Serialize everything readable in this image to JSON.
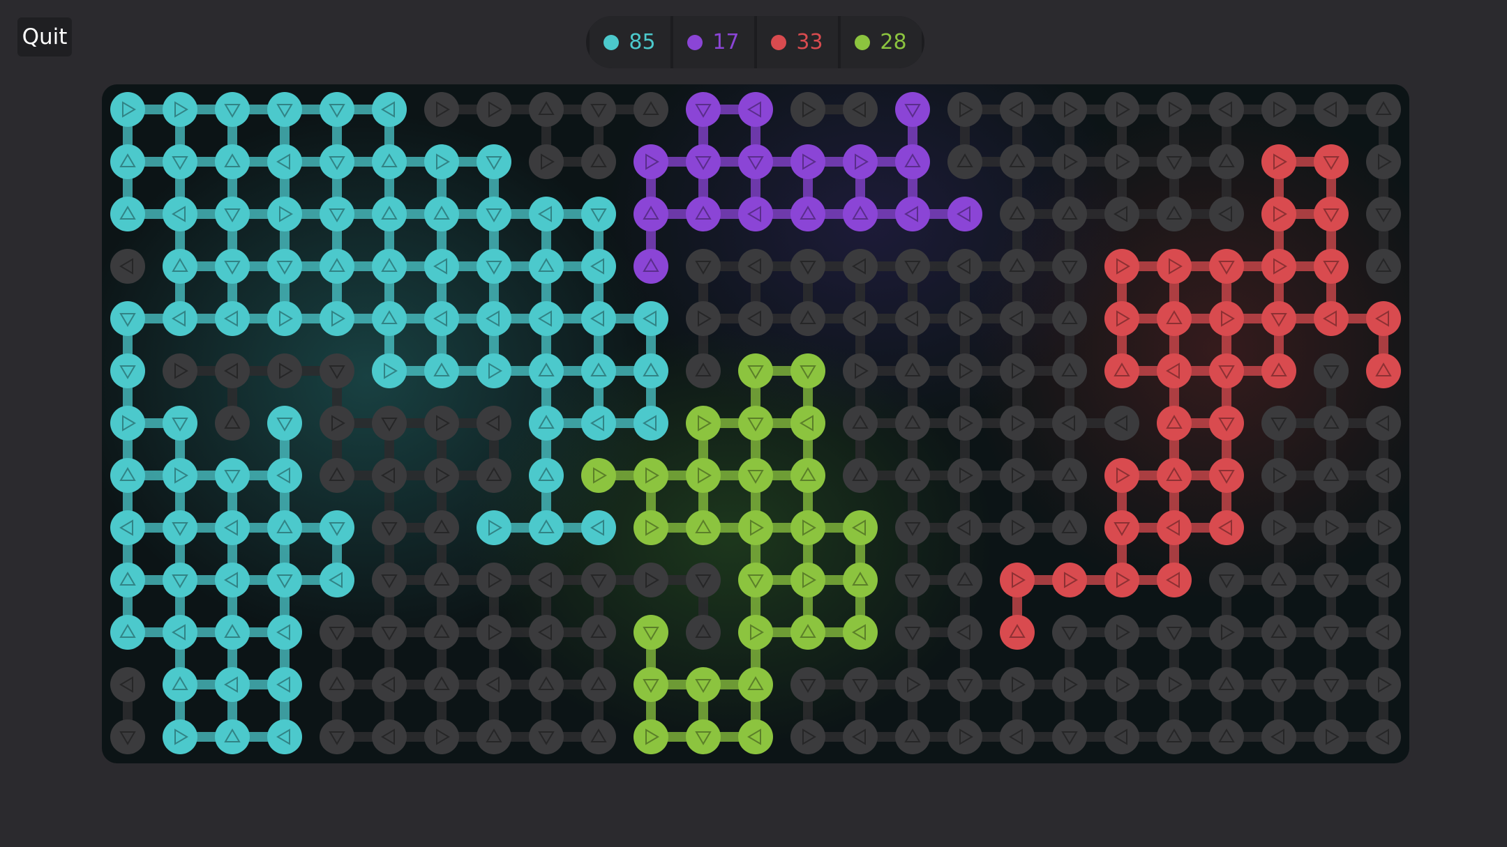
{
  "quit_label": "Quit",
  "scores": [
    {
      "team": "cyan",
      "color": "#4cc9cc",
      "value": "85"
    },
    {
      "team": "purple",
      "color": "#8b45d6",
      "value": "17"
    },
    {
      "team": "red",
      "color": "#d94b4f",
      "value": "33"
    },
    {
      "team": "green",
      "color": "#8cc43f",
      "value": "28"
    }
  ],
  "palette": {
    "c": "#4cc9cc",
    "p": "#8b45d6",
    "r": "#d94b4f",
    "g": "#8cc43f",
    "n": "#3b3b3d"
  },
  "grid": [
    "c> c> cv cv cv c< n> n> n^ nv n^ pv p< n> n< pv n> n< n> n> n> n< n> n< n^",
    "c^ cv c^ c< cv c^ c> cv n> n^ p> pv pv p> p> p^ n^ n^ n> n> nv n^ r> rv n>",
    "c^ c< cv c> cv c^ c^ cv c< cv p^ p^ p< p^ p^ p< p< n^ n^ n< n^ n< r> rv nv",
    "n< c^ cv cv c^ c^ c< cv c^ c< p^ nv n< nv n< nv n< n^ nv r> r> rv r> rv n^",
    "cv c< c< c> c> c^ c< c< c< c< c< n> n< n^ n< n< n> n< n^ r> r^ r> rv r< r<",
    "cv n> n< n> nv c> c^ c> c^ c^ c^ n^ gv gv n> n^ n> n> n^ r^ r< rv r^ nv r^",
    "c> cv n^ cv n> nv n> n< c^ c< c< g> gv g< n^ n^ n> n> n< n< r^ rv nv n^ n<",
    "c^ c> cv c< n^ n< n> n^ c^ g> g> g> gv g^ n^ n^ n> n> n^ r> r^ rv n> n^ n<",
    "c< cv c< c^ cv nv n^ c> c^ c< g> g^ g> g> g< nv n< n> n^ rv r< r< n> n> n>",
    "c^ cv c< cv c< nv n^ n> n< nv n> nv gv g> g^ nv n^ r> r> r> r< nv n^ nv n<",
    "c^ c< c^ c< nv nv n^ n> n< n^ gv n^ g> g^ g< nv n< r^ nv n> nv n> n^ nv n<",
    "n< c^ c< c< n^ n< n^ n< n^ n^ gv gv g^ nv nv n> nv n> n> n> n> n^ nv nv n>",
    "nv c> c^ c< nv n< n> n^ nv n^ g> gv g< n> n< n^ n> n< nv n< n^ n^ n< n> n<"
  ]
}
